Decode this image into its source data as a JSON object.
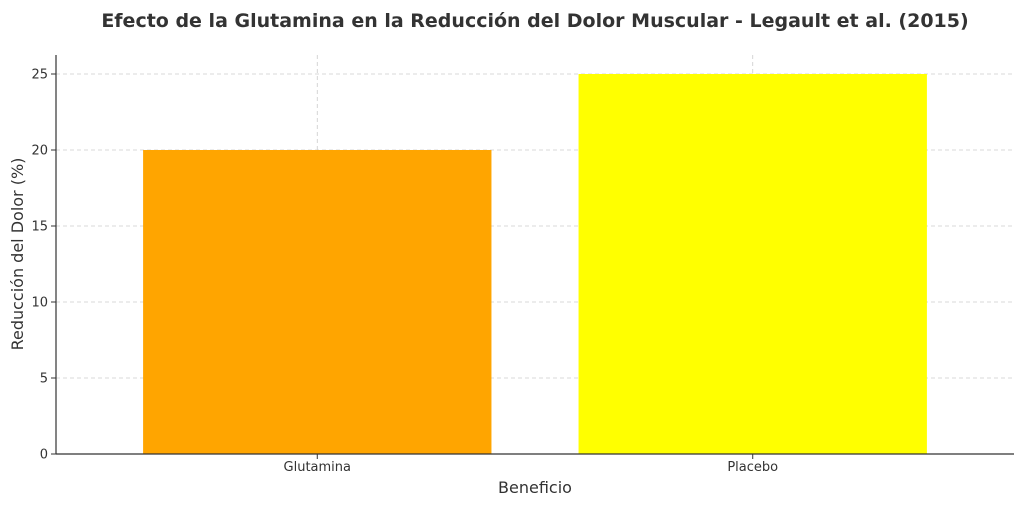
{
  "chart_data": {
    "type": "bar",
    "title": "Efecto de la Glutamina en la Reducción del Dolor Muscular - Legault et al. (2015)",
    "xlabel": "Beneficio",
    "ylabel": "Reducción del Dolor (%)",
    "categories": [
      "Glutamina",
      "Placebo"
    ],
    "values": [
      20,
      25
    ],
    "colors": [
      "#ffa500",
      "#ffff00"
    ],
    "ylim": [
      0,
      26.25
    ],
    "yticks": [
      0,
      5,
      10,
      15,
      20,
      25
    ],
    "grid": true
  }
}
